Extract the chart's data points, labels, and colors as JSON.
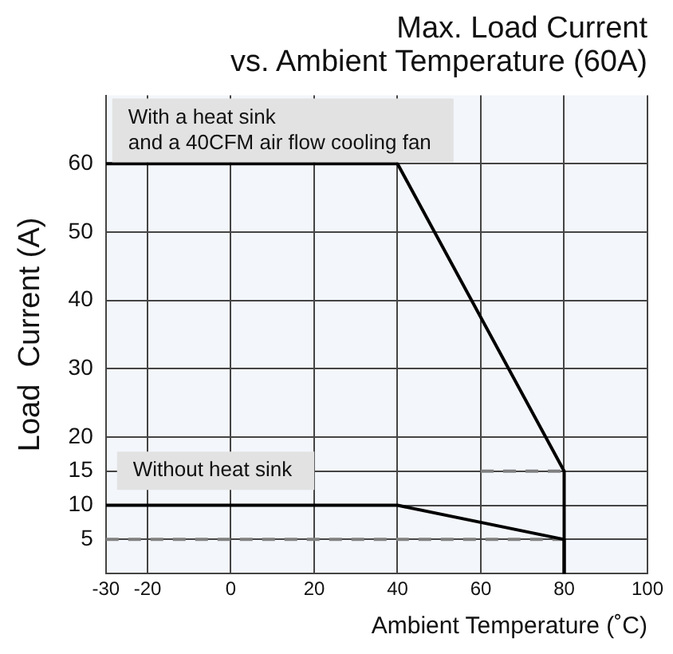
{
  "chart_data": {
    "type": "line",
    "title": "Max. Load Current\nvs. Ambient Temperature (60A)",
    "xlabel": "Ambient Temperature (˚C)",
    "ylabel": "Load  Current (A)",
    "series": [
      {
        "color": "#000000",
        "x": [
          -30,
          40,
          80,
          80
        ],
        "values": [
          60,
          60,
          15,
          0
        ]
      },
      {
        "color": "#000000",
        "x": [
          -30,
          40,
          80,
          80
        ],
        "values": [
          10,
          10,
          5,
          0
        ]
      },
      {
        "color": "#808080",
        "x": [
          60,
          80
        ],
        "values": [
          15,
          15
        ],
        "line_style": "dashed"
      },
      {
        "color": "#808080",
        "x": [
          -30,
          80
        ],
        "values": [
          5,
          5
        ],
        "line_style": "dashed"
      }
    ],
    "annotations": [
      "With a heat sink\nand a 40CFM air flow cooling fan",
      "Without heat sink"
    ],
    "xlim": [
      -30,
      100
    ],
    "xticks": [
      -30,
      -20,
      0,
      20,
      40,
      60,
      80,
      100
    ],
    "ylim": [
      0,
      70
    ],
    "yticks": [
      5,
      10,
      15,
      20,
      30,
      40,
      50,
      60
    ],
    "grid": true,
    "legend": false,
    "marker": "none",
    "line_style": "solid"
  }
}
